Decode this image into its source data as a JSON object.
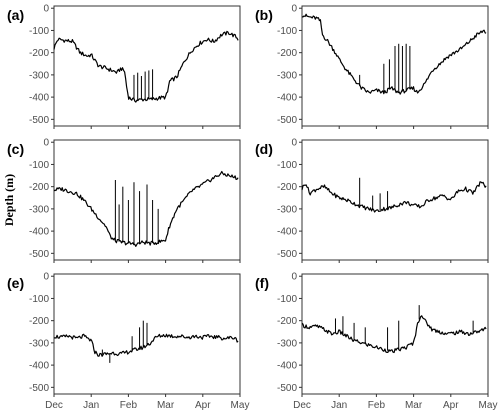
{
  "figure": {
    "ylabel": "Depth (m)",
    "line_color": "#000000"
  },
  "chart_data": [
    {
      "panel": "(a)",
      "type": "line",
      "x_ticks": [
        "Dec",
        "Jan",
        "Feb",
        "Mar",
        "Apr",
        "May"
      ],
      "y_ticks": [
        "0",
        "-100",
        "-200",
        "-300",
        "-400",
        "-500"
      ],
      "xlim": [
        0,
        5
      ],
      "ylim": [
        -530,
        10
      ],
      "series": [
        {
          "x": [
            0,
            0.1,
            0.3,
            0.5,
            0.7,
            0.9,
            1.0,
            1.2,
            1.4,
            1.55,
            1.7,
            1.8,
            1.9,
            1.95,
            2.0,
            2.1,
            2.2,
            2.4,
            2.6,
            2.8,
            3.0,
            3.05,
            3.1,
            3.3,
            3.5,
            3.7,
            3.9,
            4.1,
            4.3,
            4.5,
            4.7,
            4.9,
            4.95
          ],
          "y": [
            -180,
            -140,
            -145,
            -150,
            -200,
            -215,
            -210,
            -260,
            -270,
            -280,
            -290,
            -270,
            -285,
            -350,
            -400,
            -410,
            -415,
            -410,
            -410,
            -405,
            -400,
            -380,
            -330,
            -310,
            -240,
            -190,
            -160,
            -140,
            -150,
            -120,
            -110,
            -130,
            -140
          ],
          "spikes": [
            {
              "x": 2.15,
              "y": -300
            },
            {
              "x": 2.25,
              "y": -290
            },
            {
              "x": 2.35,
              "y": -305
            },
            {
              "x": 2.45,
              "y": -285
            },
            {
              "x": 2.55,
              "y": -280
            },
            {
              "x": 2.65,
              "y": -275
            }
          ]
        }
      ]
    },
    {
      "panel": "(b)",
      "type": "line",
      "x_ticks": [
        "Dec",
        "Jan",
        "Feb",
        "Mar",
        "Apr",
        "May"
      ],
      "y_ticks": [
        "0",
        "-100",
        "-200",
        "-300",
        "-400",
        "-500"
      ],
      "xlim": [
        0,
        5
      ],
      "ylim": [
        -530,
        10
      ],
      "series": [
        {
          "x": [
            0,
            0.2,
            0.4,
            0.5,
            0.55,
            0.7,
            0.9,
            1.0,
            1.2,
            1.4,
            1.6,
            1.8,
            2.0,
            2.2,
            2.4,
            2.6,
            2.8,
            3.0,
            3.1,
            3.3,
            3.5,
            3.7,
            3.9,
            4.1,
            4.3,
            4.5,
            4.7,
            4.9,
            4.95
          ],
          "y": [
            -30,
            -40,
            -45,
            -60,
            -120,
            -150,
            -200,
            -230,
            -280,
            -320,
            -360,
            -380,
            -370,
            -380,
            -360,
            -380,
            -370,
            -360,
            -380,
            -340,
            -280,
            -250,
            -220,
            -200,
            -180,
            -150,
            -120,
            -100,
            -110
          ],
          "spikes": [
            {
              "x": 1.55,
              "y": -300
            },
            {
              "x": 2.2,
              "y": -250
            },
            {
              "x": 2.35,
              "y": -230
            },
            {
              "x": 2.5,
              "y": -170
            },
            {
              "x": 2.6,
              "y": -160
            },
            {
              "x": 2.7,
              "y": -170
            },
            {
              "x": 2.8,
              "y": -160
            },
            {
              "x": 2.9,
              "y": -170
            }
          ]
        }
      ]
    },
    {
      "panel": "(c)",
      "type": "line",
      "x_ticks": [
        "Dec",
        "Jan",
        "Feb",
        "Mar",
        "Apr",
        "May"
      ],
      "y_ticks": [
        "0",
        "-100",
        "-200",
        "-300",
        "-400",
        "-500"
      ],
      "xlim": [
        0,
        5
      ],
      "ylim": [
        -530,
        10
      ],
      "series": [
        {
          "x": [
            0,
            0.2,
            0.4,
            0.6,
            0.8,
            1.0,
            1.2,
            1.4,
            1.5,
            1.6,
            1.8,
            2.0,
            2.2,
            2.4,
            2.6,
            2.8,
            3.0,
            3.1,
            3.3,
            3.5,
            3.7,
            3.9,
            4.1,
            4.3,
            4.5,
            4.7,
            4.9,
            4.95
          ],
          "y": [
            -215,
            -210,
            -220,
            -230,
            -260,
            -300,
            -340,
            -380,
            -420,
            -440,
            -450,
            -455,
            -460,
            -450,
            -455,
            -450,
            -440,
            -380,
            -300,
            -260,
            -220,
            -200,
            -180,
            -160,
            -140,
            -150,
            -160,
            -165
          ],
          "spikes": [
            {
              "x": 1.65,
              "y": -170
            },
            {
              "x": 1.75,
              "y": -280
            },
            {
              "x": 1.85,
              "y": -200
            },
            {
              "x": 2.0,
              "y": -260
            },
            {
              "x": 2.15,
              "y": -180
            },
            {
              "x": 2.3,
              "y": -220
            },
            {
              "x": 2.5,
              "y": -190
            },
            {
              "x": 2.65,
              "y": -260
            },
            {
              "x": 2.8,
              "y": -300
            }
          ]
        }
      ]
    },
    {
      "panel": "(d)",
      "type": "line",
      "x_ticks": [
        "Dec",
        "Jan",
        "Feb",
        "Mar",
        "Apr",
        "May"
      ],
      "y_ticks": [
        "0",
        "-100",
        "-200",
        "-300",
        "-400",
        "-500"
      ],
      "xlim": [
        0,
        5
      ],
      "ylim": [
        -530,
        10
      ],
      "series": [
        {
          "x": [
            0,
            0.1,
            0.2,
            0.4,
            0.6,
            0.8,
            1.0,
            1.2,
            1.4,
            1.6,
            1.8,
            2.0,
            2.2,
            2.4,
            2.6,
            2.8,
            3.0,
            3.2,
            3.4,
            3.6,
            3.8,
            4.0,
            4.2,
            4.4,
            4.6,
            4.8,
            4.95
          ],
          "y": [
            -210,
            -180,
            -230,
            -210,
            -200,
            -230,
            -250,
            -260,
            -275,
            -290,
            -300,
            -310,
            -300,
            -295,
            -280,
            -270,
            -285,
            -290,
            -260,
            -250,
            -240,
            -260,
            -220,
            -210,
            -230,
            -180,
            -200
          ],
          "spikes": [
            {
              "x": 1.55,
              "y": -160
            },
            {
              "x": 1.9,
              "y": -240
            },
            {
              "x": 2.1,
              "y": -230
            },
            {
              "x": 2.3,
              "y": -220
            }
          ]
        }
      ]
    },
    {
      "panel": "(e)",
      "type": "line",
      "x_ticks": [
        "Dec",
        "Jan",
        "Feb",
        "Mar",
        "Apr",
        "May"
      ],
      "y_ticks": [
        "0",
        "-100",
        "-200",
        "-300",
        "-400",
        "-500"
      ],
      "xlim": [
        0,
        5
      ],
      "ylim": [
        -530,
        10
      ],
      "series": [
        {
          "x": [
            0,
            0.2,
            0.4,
            0.6,
            0.8,
            1.0,
            1.1,
            1.2,
            1.4,
            1.6,
            1.8,
            2.0,
            2.2,
            2.4,
            2.6,
            2.7,
            2.8,
            3.0,
            3.2,
            3.4,
            3.6,
            3.8,
            4.0,
            4.2,
            4.4,
            4.6,
            4.8,
            4.95
          ],
          "y": [
            -270,
            -275,
            -270,
            -280,
            -270,
            -290,
            -340,
            -355,
            -350,
            -345,
            -350,
            -340,
            -330,
            -320,
            -300,
            -280,
            -270,
            -265,
            -270,
            -270,
            -275,
            -270,
            -275,
            -270,
            -275,
            -280,
            -275,
            -290
          ],
          "spikes": [
            {
              "x": 1.3,
              "y": -330
            },
            {
              "x": 1.5,
              "y": -390
            },
            {
              "x": 2.1,
              "y": -270
            },
            {
              "x": 2.3,
              "y": -230
            },
            {
              "x": 2.4,
              "y": -200
            },
            {
              "x": 2.5,
              "y": -210
            }
          ]
        }
      ]
    },
    {
      "panel": "(f)",
      "type": "line",
      "x_ticks": [
        "Dec",
        "Jan",
        "Feb",
        "Mar",
        "Apr",
        "May"
      ],
      "y_ticks": [
        "0",
        "-100",
        "-200",
        "-300",
        "-400",
        "-500"
      ],
      "xlim": [
        0,
        5
      ],
      "ylim": [
        -530,
        10
      ],
      "series": [
        {
          "x": [
            0,
            0.2,
            0.4,
            0.6,
            0.8,
            1.0,
            1.2,
            1.4,
            1.6,
            1.8,
            2.0,
            2.2,
            2.4,
            2.6,
            2.8,
            3.0,
            3.1,
            3.2,
            3.3,
            3.5,
            3.7,
            3.9,
            4.1,
            4.3,
            4.5,
            4.7,
            4.9,
            4.95
          ],
          "y": [
            -220,
            -230,
            -225,
            -240,
            -260,
            -250,
            -270,
            -290,
            -300,
            -310,
            -320,
            -330,
            -340,
            -330,
            -320,
            -300,
            -220,
            -170,
            -200,
            -240,
            -250,
            -260,
            -255,
            -250,
            -260,
            -250,
            -240,
            -230
          ],
          "spikes": [
            {
              "x": 0.9,
              "y": -190
            },
            {
              "x": 1.1,
              "y": -180
            },
            {
              "x": 1.4,
              "y": -210
            },
            {
              "x": 1.7,
              "y": -230
            },
            {
              "x": 2.3,
              "y": -230
            },
            {
              "x": 2.6,
              "y": -200
            },
            {
              "x": 3.15,
              "y": -130
            },
            {
              "x": 4.6,
              "y": -200
            }
          ]
        }
      ]
    }
  ]
}
